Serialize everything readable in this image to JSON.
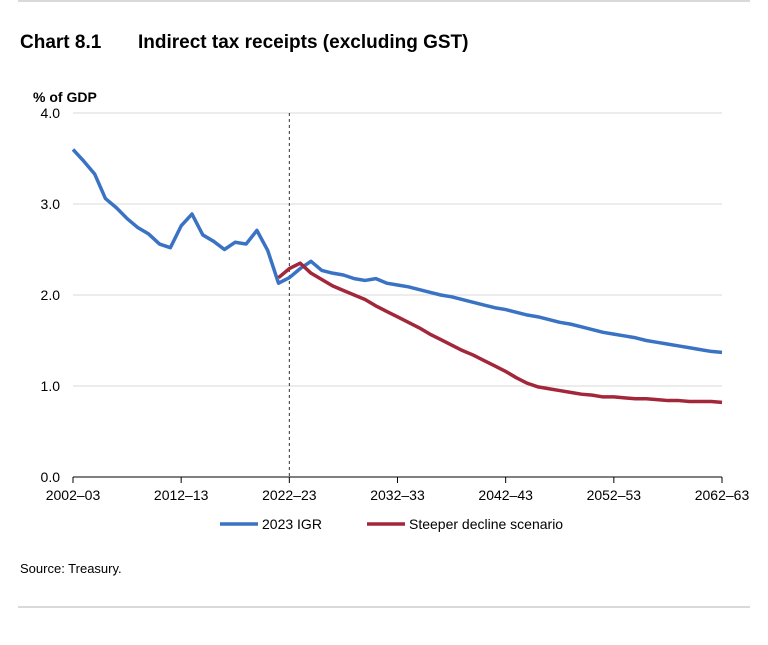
{
  "heading": {
    "number": "Chart 8.1",
    "title": "Indirect tax receipts (excluding GST)"
  },
  "source": "Source: Treasury.",
  "chart_data": {
    "type": "line",
    "ylabel": "% of GDP",
    "ylim": [
      0,
      4
    ],
    "y_ticks": [
      "0.0",
      "1.0",
      "2.0",
      "3.0",
      "4.0"
    ],
    "x_tick_labels": [
      "2002–03",
      "2012–13",
      "2022–23",
      "2032–33",
      "2042–43",
      "2052–53",
      "2062–63"
    ],
    "x_start_year": 2002,
    "x_end_year": 2062,
    "divider_at": "2022–23",
    "grid": "horizontal",
    "legend_position": "bottom",
    "series": [
      {
        "name": "2023 IGR",
        "color": "#3a73c4",
        "start_year": 2002,
        "values": [
          3.6,
          3.47,
          3.33,
          3.06,
          2.96,
          2.84,
          2.74,
          2.67,
          2.56,
          2.52,
          2.76,
          2.89,
          2.66,
          2.59,
          2.5,
          2.58,
          2.56,
          2.71,
          2.49,
          2.13,
          2.19,
          2.29,
          2.37,
          2.27,
          2.24,
          2.22,
          2.18,
          2.16,
          2.18,
          2.13,
          2.11,
          2.09,
          2.06,
          2.03,
          2.0,
          1.98,
          1.95,
          1.92,
          1.89,
          1.86,
          1.84,
          1.81,
          1.78,
          1.76,
          1.73,
          1.7,
          1.68,
          1.65,
          1.62,
          1.59,
          1.57,
          1.55,
          1.53,
          1.5,
          1.48,
          1.46,
          1.44,
          1.42,
          1.4,
          1.38,
          1.37
        ]
      },
      {
        "name": "Steeper decline scenario",
        "color": "#a3273b",
        "start_year": 2021,
        "values": [
          2.19,
          2.29,
          2.35,
          2.24,
          2.17,
          2.1,
          2.05,
          2.0,
          1.95,
          1.88,
          1.82,
          1.76,
          1.7,
          1.64,
          1.57,
          1.51,
          1.45,
          1.39,
          1.34,
          1.28,
          1.22,
          1.16,
          1.09,
          1.03,
          0.99,
          0.97,
          0.95,
          0.93,
          0.91,
          0.9,
          0.88,
          0.88,
          0.87,
          0.86,
          0.86,
          0.85,
          0.84,
          0.84,
          0.83,
          0.83,
          0.83,
          0.82
        ]
      }
    ]
  }
}
